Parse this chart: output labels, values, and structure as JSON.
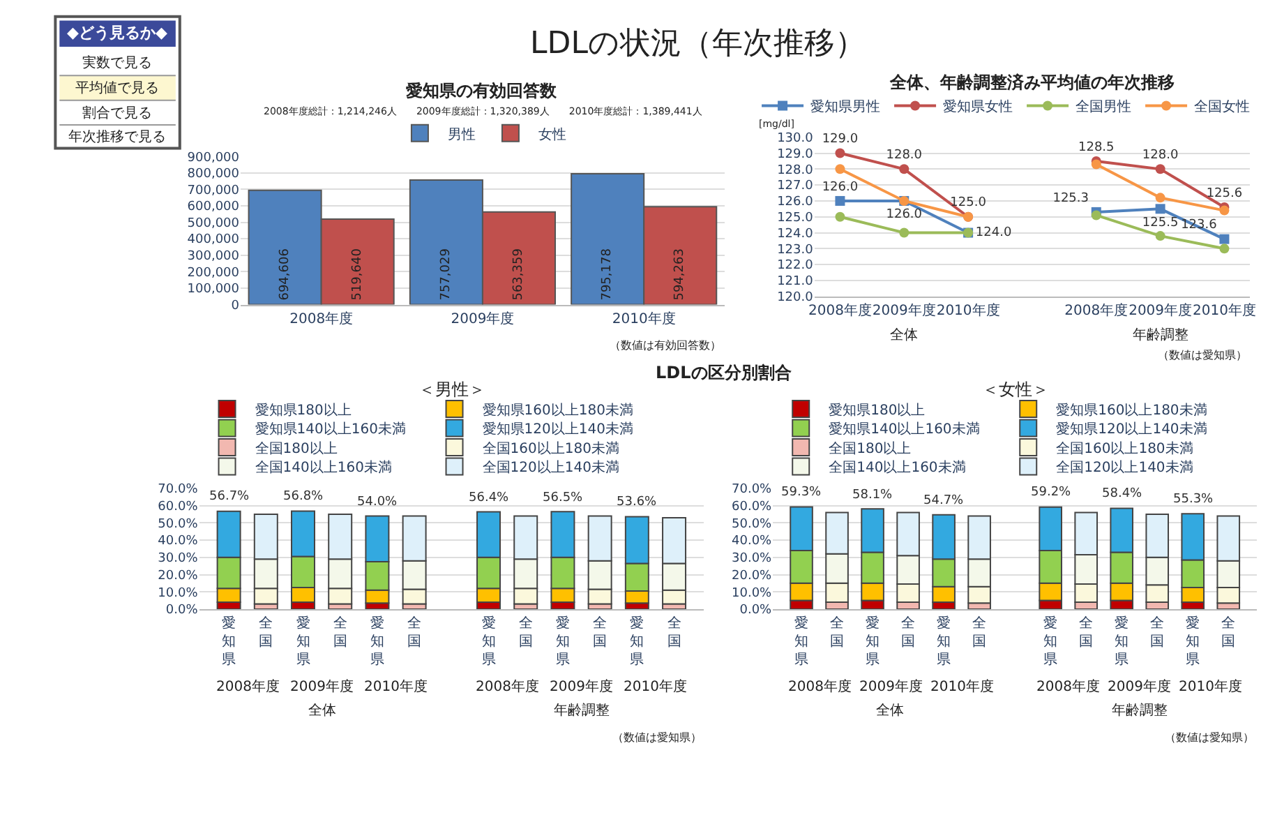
{
  "chart_data": [
    {
      "type": "other",
      "title": "◆どう見るか◆",
      "annotations": [
        "実数で見る",
        "平均値で見る",
        "割合で見る",
        "年次推移で見る"
      ]
    },
    {
      "type": "other",
      "title": "LDLの状況（年次推移）"
    },
    {
      "type": "bar",
      "title": "愛知県の有効回答数",
      "subtitle": "2008年度総計：1,214,246人　　2009年度総計：1,320,389人　　2010年度総計：1,389,441人",
      "categories": [
        "2008年度",
        "2009年度",
        "2010年度"
      ],
      "series": [
        {
          "name": "男性",
          "color": "#4f81bd",
          "values": [
            694606,
            757029,
            795178
          ],
          "value_labels": [
            "694,606",
            "757,029",
            "795,178"
          ]
        },
        {
          "name": "女性",
          "color": "#c0504d",
          "values": [
            519640,
            563359,
            594263
          ],
          "value_labels": [
            "519,640",
            "563,359",
            "594,263"
          ]
        }
      ],
      "ylim": [
        0,
        900000
      ],
      "yticks": [
        0,
        {
          "value": 100000,
          "label": "100,000"
        },
        {
          "value": 200000,
          "label": "200,000"
        },
        {
          "value": 300000,
          "label": "300,000"
        },
        {
          "value": 400000,
          "label": "400,000"
        },
        {
          "value": 500000,
          "label": "500,000"
        },
        {
          "value": 600000,
          "label": "600,000"
        },
        {
          "value": 700000,
          "label": "700,000"
        },
        {
          "value": 800000,
          "label": "800,000"
        },
        {
          "value": 900000,
          "label": "900,000"
        }
      ],
      "grid": "y",
      "legend": "top",
      "annotations": [
        "（数値は有効回答数）"
      ]
    },
    {
      "type": "line",
      "title": "全体、年齢調整済み平均値の年次推移",
      "ylabel": "[mg/dl]",
      "categories": [
        "2008年度",
        "2009年度",
        "2010年度",
        null,
        "2008年度",
        "2009年度",
        "2010年度"
      ],
      "series": [
        {
          "name": "愛知県男性",
          "color": "#4f81bd",
          "marker": "square",
          "values": [
            126.0,
            126.0,
            124.0,
            null,
            125.3,
            125.5,
            123.6
          ],
          "value_labels": [
            "126.0",
            "126.0",
            "124.0",
            null,
            "125.3",
            "125.5",
            "123.6"
          ]
        },
        {
          "name": "愛知県女性",
          "color": "#c0504d",
          "marker": "circle",
          "values": [
            129.0,
            128.0,
            125.0,
            null,
            128.5,
            128.0,
            125.6
          ],
          "value_labels": [
            "129.0",
            "128.0",
            "125.0",
            null,
            "128.5",
            "128.0",
            "125.6"
          ]
        },
        {
          "name": "全国男性",
          "color": "#9bbb59",
          "marker": "circle",
          "values": [
            125.0,
            124.0,
            124.0,
            null,
            125.1,
            123.8,
            123.0
          ]
        },
        {
          "name": "全国女性",
          "color": "#f79646",
          "marker": "circle",
          "values": [
            128.0,
            126.0,
            125.0,
            null,
            128.3,
            126.2,
            125.4
          ]
        }
      ],
      "ylim": [
        120,
        130
      ],
      "yticks": [
        {
          "value": 120,
          "label": "120.0"
        },
        {
          "value": 121,
          "label": "121.0"
        },
        {
          "value": 122,
          "label": "122.0"
        },
        {
          "value": 123,
          "label": "123.0"
        },
        {
          "value": 124,
          "label": "124.0"
        },
        {
          "value": 125,
          "label": "125.0"
        },
        {
          "value": 126,
          "label": "126.0"
        },
        {
          "value": 127,
          "label": "127.0"
        },
        {
          "value": 128,
          "label": "128.0"
        },
        {
          "value": 129,
          "label": "129.0"
        },
        {
          "value": 130,
          "label": "130.0"
        }
      ],
      "grid": "y",
      "legend": "top",
      "line_style": "solid",
      "annotations": [
        "全体",
        "年齢調整",
        "（数値は愛知県）"
      ]
    },
    {
      "type": "other",
      "title": "LDLの区分別割合"
    },
    {
      "type": "bar",
      "stacked": true,
      "title": "＜男性＞",
      "categories": [
        "愛知県",
        "全国",
        "愛知県",
        "全国",
        "愛知県",
        "全国",
        null,
        "愛知県",
        "全国",
        "愛知県",
        "全国",
        "愛知県",
        "全国"
      ],
      "series": [
        {
          "name": "愛知県180以上",
          "color": "#c00000",
          "values": [
            4,
            null,
            4,
            null,
            3.5,
            null,
            null,
            4,
            null,
            4,
            null,
            3.5,
            null
          ]
        },
        {
          "name": "愛知県160以上180未満",
          "color": "#ffc000",
          "values": [
            8,
            null,
            8.5,
            null,
            7.5,
            null,
            null,
            8,
            null,
            8,
            null,
            7,
            null
          ]
        },
        {
          "name": "愛知県140以上160未満",
          "color": "#92d050",
          "values": [
            18,
            null,
            18,
            null,
            16.5,
            null,
            null,
            18,
            null,
            18,
            null,
            16,
            null
          ]
        },
        {
          "name": "愛知県120以上140未満",
          "color": "#33a9e0",
          "values": [
            26.7,
            null,
            26.3,
            null,
            26.5,
            null,
            null,
            26.4,
            null,
            26.5,
            null,
            27.1,
            null
          ]
        },
        {
          "name": "全国180以上",
          "color": "#f2b8b0",
          "values": [
            null,
            3,
            null,
            3,
            null,
            3,
            null,
            null,
            3,
            null,
            3,
            null,
            3
          ]
        },
        {
          "name": "全国160以上180未満",
          "color": "#fbf8dc",
          "values": [
            null,
            9,
            null,
            9,
            null,
            8.5,
            null,
            null,
            9,
            null,
            8.5,
            null,
            8
          ]
        },
        {
          "name": "全国140以上160未満",
          "color": "#f4f8ea",
          "values": [
            null,
            17,
            null,
            17,
            null,
            16.5,
            null,
            null,
            17,
            null,
            16.5,
            null,
            15.5
          ]
        },
        {
          "name": "全国120以上140未満",
          "color": "#def0fa",
          "values": [
            null,
            26,
            null,
            26,
            null,
            26,
            null,
            null,
            25,
            null,
            26,
            null,
            26.5
          ]
        }
      ],
      "totals": [
        "56.7%",
        null,
        "56.8%",
        null,
        "54.0%",
        null,
        null,
        "56.4%",
        null,
        "56.5%",
        null,
        "53.6%",
        null
      ],
      "ylim": [
        0,
        70
      ],
      "yticks": [
        {
          "value": 0,
          "label": "0.0%"
        },
        {
          "value": 10,
          "label": "10.0%"
        },
        {
          "value": 20,
          "label": "20.0%"
        },
        {
          "value": 30,
          "label": "30.0%"
        },
        {
          "value": 40,
          "label": "40.0%"
        },
        {
          "value": 50,
          "label": "50.0%"
        },
        {
          "value": 60,
          "label": "60.0%"
        },
        {
          "value": 70,
          "label": "70.0%"
        }
      ],
      "grid": "y",
      "legend": "top",
      "annotations": [
        "2008年度",
        "2009年度",
        "2010年度",
        "2008年度",
        "2009年度",
        "2010年度",
        "全体",
        "年齢調整",
        "（数値は愛知県）"
      ]
    },
    {
      "type": "bar",
      "stacked": true,
      "title": "＜女性＞",
      "categories": [
        "愛知県",
        "全国",
        "愛知県",
        "全国",
        "愛知県",
        "全国",
        null,
        "愛知県",
        "全国",
        "愛知県",
        "全国",
        "愛知県",
        "全国"
      ],
      "series": [
        {
          "name": "愛知県180以上",
          "color": "#c00000",
          "values": [
            5,
            null,
            5,
            null,
            4,
            null,
            null,
            5,
            null,
            5,
            null,
            4,
            null
          ]
        },
        {
          "name": "愛知県160以上180未満",
          "color": "#ffc000",
          "values": [
            10,
            null,
            10,
            null,
            9,
            null,
            null,
            10,
            null,
            10,
            null,
            8.5,
            null
          ]
        },
        {
          "name": "愛知県140以上160未満",
          "color": "#92d050",
          "values": [
            19,
            null,
            18,
            null,
            16,
            null,
            null,
            19,
            null,
            18,
            null,
            16,
            null
          ]
        },
        {
          "name": "愛知県120以上140未満",
          "color": "#33a9e0",
          "values": [
            25.3,
            null,
            25.1,
            null,
            25.7,
            null,
            null,
            25.2,
            null,
            25.4,
            null,
            26.8,
            null
          ]
        },
        {
          "name": "全国180以上",
          "color": "#f2b8b0",
          "values": [
            null,
            4,
            null,
            4,
            null,
            3.5,
            null,
            null,
            4,
            null,
            4,
            null,
            3.5
          ]
        },
        {
          "name": "全国160以上180未満",
          "color": "#fbf8dc",
          "values": [
            null,
            11,
            null,
            10.5,
            null,
            9.5,
            null,
            null,
            10.5,
            null,
            10,
            null,
            9
          ]
        },
        {
          "name": "全国140以上160未満",
          "color": "#f4f8ea",
          "values": [
            null,
            17,
            null,
            16.5,
            null,
            16,
            null,
            null,
            17,
            null,
            16,
            null,
            15.5
          ]
        },
        {
          "name": "全国120以上140未満",
          "color": "#def0fa",
          "values": [
            null,
            24,
            null,
            25,
            null,
            25,
            null,
            null,
            24.5,
            null,
            25,
            null,
            26
          ]
        }
      ],
      "totals": [
        "59.3%",
        null,
        "58.1%",
        null,
        "54.7%",
        null,
        null,
        "59.2%",
        null,
        "58.4%",
        null,
        "55.3%",
        null
      ],
      "ylim": [
        0,
        70
      ],
      "yticks": [
        {
          "value": 0,
          "label": "0.0%"
        },
        {
          "value": 10,
          "label": "10.0%"
        },
        {
          "value": 20,
          "label": "20.0%"
        },
        {
          "value": 30,
          "label": "30.0%"
        },
        {
          "value": 40,
          "label": "40.0%"
        },
        {
          "value": 50,
          "label": "50.0%"
        },
        {
          "value": 60,
          "label": "60.0%"
        },
        {
          "value": 70,
          "label": "70.0%"
        }
      ],
      "grid": "y",
      "legend": "top",
      "annotations": [
        "2008年度",
        "2009年度",
        "2010年度",
        "2008年度",
        "2009年度",
        "2010年度",
        "全体",
        "年齢調整",
        "（数値は愛知県）"
      ]
    }
  ]
}
